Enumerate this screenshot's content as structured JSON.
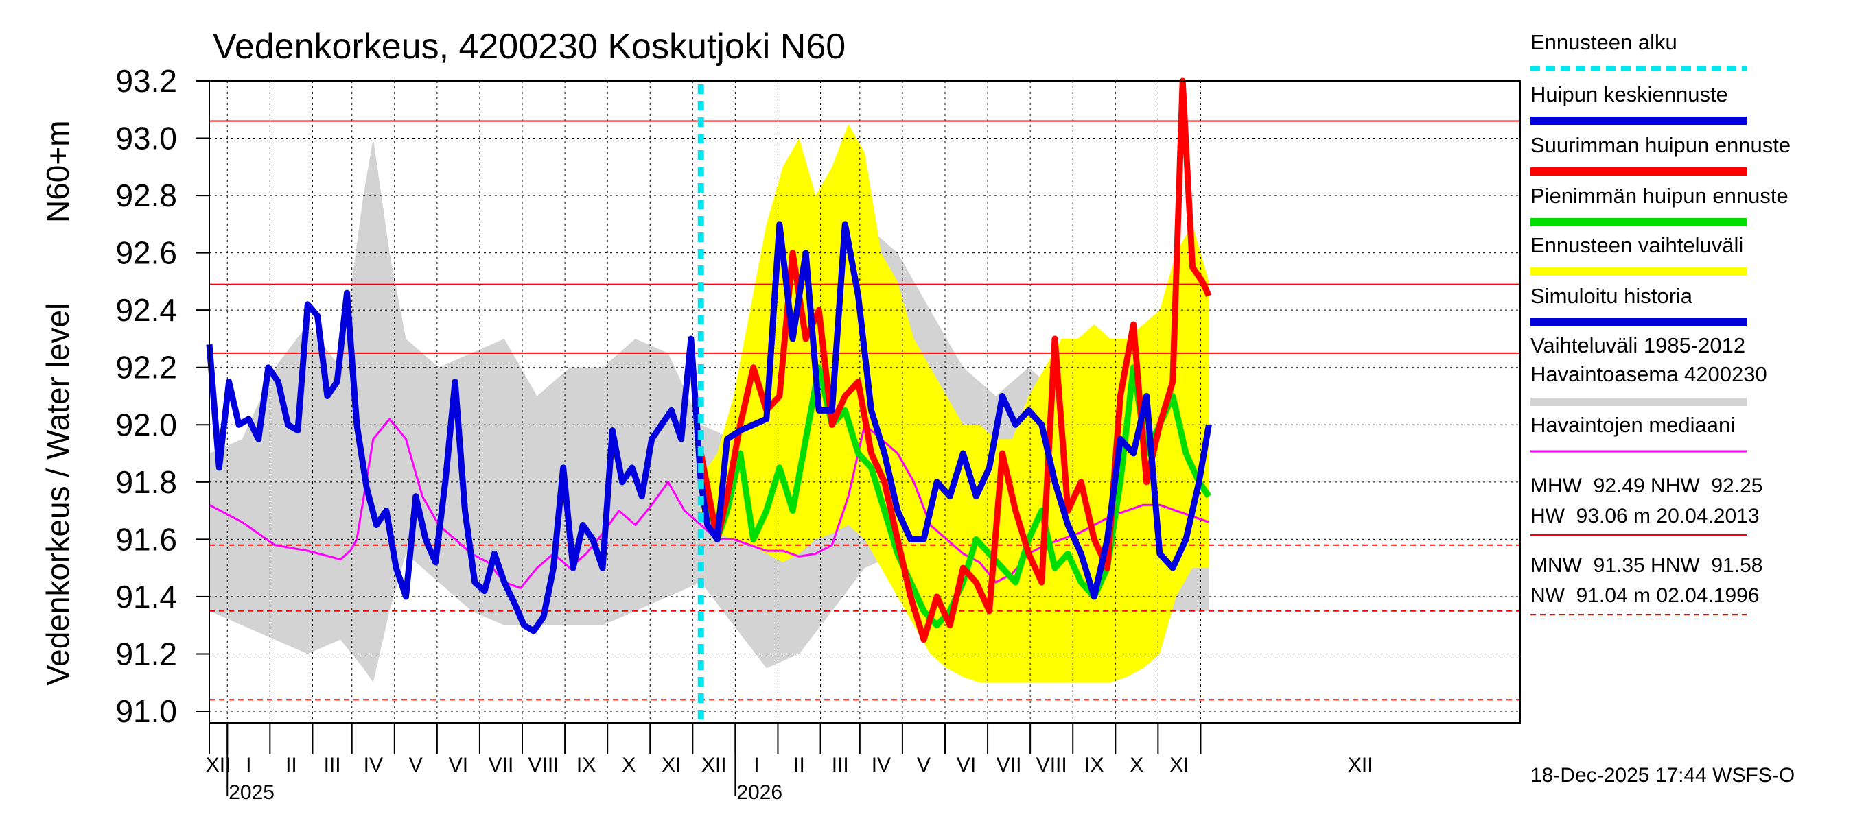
{
  "chart_data": {
    "type": "line",
    "title": "Vedenkorkeus, 4200230 Koskutjoki N60",
    "ylabel_left": "Vedenkorkeus / Water level",
    "ylabel_unit": "N60+m",
    "ylim": [
      91.0,
      93.2
    ],
    "yticks": [
      {
        "value": 91.0,
        "label": "91.0"
      },
      {
        "value": 91.2,
        "label": "91.2"
      },
      {
        "value": 91.4,
        "label": "91.4"
      },
      {
        "value": 91.6,
        "label": "91.6"
      },
      {
        "value": 91.8,
        "label": "91.8"
      },
      {
        "value": 92.0,
        "label": "92.0"
      },
      {
        "value": 92.2,
        "label": "92.2"
      },
      {
        "value": 92.4,
        "label": "92.4"
      },
      {
        "value": 92.6,
        "label": "92.6"
      },
      {
        "value": 92.8,
        "label": "92.8"
      },
      {
        "value": 93.0,
        "label": "93.0"
      },
      {
        "value": 93.2,
        "label": "93.2"
      }
    ],
    "xlim_days": [
      0,
      400
    ],
    "months": [
      "XII",
      "I",
      "II",
      "III",
      "IV",
      "V",
      "VI",
      "VII",
      "VIII",
      "IX",
      "X",
      "XI",
      "XII",
      "I",
      "II",
      "III",
      "IV",
      "V",
      "VI",
      "VII",
      "VIII",
      "IX",
      "X",
      "XI",
      "XII"
    ],
    "month_boundaries": [
      0,
      5.5,
      18.5,
      31.5,
      43.5,
      56.5,
      69.5,
      82.5,
      95.5,
      108.5,
      121.5,
      134.5,
      147.5,
      160.5,
      173.5,
      186.5,
      198.5,
      211.5,
      224.5,
      237.5,
      250.5,
      263.5,
      276.5,
      289.5,
      302.5
    ],
    "years": [
      {
        "label": "2025",
        "day": 5.5
      },
      {
        "label": "2026",
        "day": 160.5
      }
    ],
    "forecast_start_day": 150,
    "reference_lines": [
      {
        "name": "HW",
        "value": 93.06,
        "style": "solid"
      },
      {
        "name": "MHW",
        "value": 92.49,
        "style": "solid"
      },
      {
        "name": "NHW",
        "value": 92.25,
        "style": "solid"
      },
      {
        "name": "HNW",
        "value": 91.58,
        "style": "dashed"
      },
      {
        "name": "MNW",
        "value": 91.35,
        "style": "dashed"
      },
      {
        "name": "NW",
        "value": 91.04,
        "style": "dashed"
      }
    ],
    "series": [
      {
        "name": "Vaihteluväli 1985-2012",
        "type": "band",
        "color": "#d3d3d3",
        "x": [
          0,
          10,
          20,
          30,
          40,
          47,
          50,
          55,
          60,
          70,
          80,
          90,
          100,
          110,
          120,
          130,
          140,
          150,
          160,
          170,
          180,
          190,
          200,
          210,
          220,
          230,
          240,
          250,
          260,
          270,
          280,
          290,
          300,
          305
        ],
        "low": [
          91.35,
          91.3,
          91.25,
          91.2,
          91.25,
          91.15,
          91.1,
          91.35,
          91.55,
          91.45,
          91.35,
          91.3,
          91.3,
          91.3,
          91.3,
          91.35,
          91.4,
          91.45,
          91.3,
          91.15,
          91.2,
          91.35,
          91.5,
          91.55,
          91.45,
          91.35,
          91.3,
          91.3,
          91.3,
          91.32,
          91.3,
          91.35,
          91.35,
          91.35
        ],
        "high": [
          91.9,
          91.95,
          92.2,
          92.35,
          92.2,
          92.8,
          93.0,
          92.6,
          92.3,
          92.2,
          92.25,
          92.3,
          92.1,
          92.2,
          92.2,
          92.3,
          92.25,
          92.0,
          91.95,
          92.1,
          92.5,
          92.6,
          92.7,
          92.6,
          92.4,
          92.2,
          92.1,
          92.2,
          92.1,
          92.2,
          92.3,
          92.2,
          92.3,
          92.3
        ]
      },
      {
        "name": "Ennusteen vaihteluväli",
        "type": "band",
        "color": "#ffff00",
        "x": [
          150,
          152,
          155,
          160,
          165,
          170,
          175,
          180,
          185,
          190,
          195,
          200,
          205,
          210,
          215,
          220,
          225,
          230,
          235,
          240,
          245,
          250,
          255,
          260,
          265,
          270,
          275,
          280,
          285,
          290,
          295,
          300,
          305
        ],
        "low": [
          91.7,
          91.65,
          91.62,
          91.6,
          91.58,
          91.55,
          91.52,
          91.55,
          91.6,
          91.62,
          91.65,
          91.6,
          91.5,
          91.4,
          91.3,
          91.2,
          91.15,
          91.12,
          91.1,
          91.1,
          91.1,
          91.1,
          91.1,
          91.1,
          91.1,
          91.1,
          91.1,
          91.12,
          91.15,
          91.2,
          91.4,
          91.5,
          91.5
        ],
        "high": [
          91.8,
          91.85,
          91.9,
          92.1,
          92.4,
          92.7,
          92.9,
          93.0,
          92.8,
          92.9,
          93.05,
          92.95,
          92.6,
          92.5,
          92.3,
          92.2,
          92.1,
          92.0,
          92.0,
          91.95,
          91.95,
          92.1,
          92.2,
          92.3,
          92.3,
          92.35,
          92.3,
          92.3,
          92.35,
          92.4,
          92.6,
          92.7,
          92.5
        ]
      },
      {
        "name": "Havaintojen mediaani",
        "type": "line",
        "color": "#ff00ff",
        "x": [
          0,
          10,
          20,
          30,
          40,
          43,
          45,
          50,
          55,
          60,
          65,
          70,
          75,
          80,
          85,
          90,
          95,
          100,
          105,
          110,
          115,
          120,
          125,
          130,
          135,
          140,
          145,
          150,
          155,
          160,
          165,
          170,
          175,
          180,
          185,
          190,
          195,
          200,
          205,
          210,
          215,
          220,
          225,
          230,
          235,
          240,
          245,
          250,
          255,
          260,
          265,
          270,
          275,
          280,
          285,
          290,
          295,
          300,
          305
        ],
        "y": [
          91.72,
          91.66,
          91.58,
          91.56,
          91.53,
          91.56,
          91.6,
          91.95,
          92.02,
          91.95,
          91.75,
          91.65,
          91.6,
          91.55,
          91.52,
          91.45,
          91.43,
          91.5,
          91.55,
          91.5,
          91.55,
          91.62,
          91.7,
          91.65,
          91.72,
          91.8,
          91.7,
          91.65,
          91.6,
          91.6,
          91.58,
          91.56,
          91.56,
          91.54,
          91.55,
          91.58,
          91.75,
          92.0,
          91.95,
          91.9,
          91.8,
          91.65,
          91.6,
          91.55,
          91.52,
          91.45,
          91.48,
          91.55,
          91.58,
          91.6,
          91.62,
          91.65,
          91.68,
          91.7,
          91.72,
          91.72,
          91.7,
          91.68,
          91.66
        ]
      },
      {
        "name": "Pienimmän huipun ennuste",
        "type": "line",
        "color": "#00dd00",
        "x": [
          150,
          155,
          158,
          162,
          166,
          170,
          174,
          178,
          182,
          186,
          190,
          194,
          198,
          202,
          206,
          210,
          214,
          218,
          222,
          226,
          230,
          234,
          238,
          242,
          246,
          250,
          254,
          258,
          262,
          266,
          270,
          274,
          278,
          282,
          286,
          290,
          294,
          298,
          302,
          305
        ],
        "y": [
          91.85,
          91.6,
          91.7,
          91.9,
          91.6,
          91.7,
          91.85,
          91.7,
          91.95,
          92.2,
          92.0,
          92.05,
          91.9,
          91.85,
          91.7,
          91.55,
          91.45,
          91.35,
          91.3,
          91.35,
          91.45,
          91.6,
          91.55,
          91.5,
          91.45,
          91.6,
          91.7,
          91.5,
          91.55,
          91.45,
          91.4,
          91.5,
          91.8,
          92.2,
          91.9,
          92.0,
          92.1,
          91.9,
          91.8,
          91.75
        ]
      },
      {
        "name": "Suurimman huipun ennuste",
        "type": "line",
        "color": "#ff0000",
        "x": [
          150,
          155,
          158,
          162,
          166,
          170,
          174,
          178,
          182,
          186,
          190,
          194,
          198,
          202,
          206,
          210,
          214,
          218,
          222,
          226,
          230,
          234,
          238,
          242,
          246,
          250,
          254,
          258,
          262,
          266,
          270,
          274,
          278,
          282,
          286,
          290,
          294,
          297,
          300,
          303,
          305
        ],
        "y": [
          91.9,
          91.6,
          91.75,
          92.0,
          92.2,
          92.05,
          92.1,
          92.6,
          92.3,
          92.4,
          92.0,
          92.1,
          92.15,
          91.9,
          91.8,
          91.6,
          91.4,
          91.25,
          91.4,
          91.3,
          91.5,
          91.45,
          91.35,
          91.9,
          91.7,
          91.55,
          91.45,
          92.3,
          91.7,
          91.8,
          91.6,
          91.5,
          92.1,
          92.35,
          91.8,
          92.0,
          92.15,
          93.2,
          92.55,
          92.5,
          92.45
        ]
      },
      {
        "name": "Simuloitu historia",
        "type": "line",
        "color": "#0000dd",
        "x": [
          0,
          3,
          6,
          9,
          12,
          15,
          18,
          21,
          24,
          27,
          30,
          33,
          36,
          39,
          42,
          45,
          48,
          51,
          54,
          57,
          60,
          63,
          66,
          69,
          72,
          75,
          78,
          81,
          84,
          87,
          90,
          93,
          96,
          99,
          102,
          105,
          108,
          111,
          114,
          117,
          120,
          123,
          126,
          129,
          132,
          135,
          138,
          141,
          144,
          147,
          150,
          152,
          155,
          158,
          162,
          166,
          170,
          174,
          178,
          182,
          186,
          190,
          194,
          198,
          202,
          206,
          210,
          214,
          218,
          222,
          226,
          230,
          234,
          238,
          242,
          246,
          250,
          254,
          258,
          262,
          266,
          270,
          274,
          278,
          282,
          286,
          290,
          294,
          298,
          302,
          305
        ],
        "y": [
          92.28,
          91.85,
          92.15,
          92.0,
          92.02,
          91.95,
          92.2,
          92.15,
          92.0,
          91.98,
          92.42,
          92.38,
          92.1,
          92.15,
          92.46,
          92.0,
          91.78,
          91.65,
          91.7,
          91.5,
          91.4,
          91.75,
          91.6,
          91.52,
          91.8,
          92.15,
          91.7,
          91.45,
          91.42,
          91.55,
          91.45,
          91.38,
          91.3,
          91.28,
          91.33,
          91.5,
          91.85,
          91.5,
          91.65,
          91.6,
          91.5,
          91.98,
          91.8,
          91.85,
          91.75,
          91.95,
          92.0,
          92.05,
          91.95,
          92.3,
          91.8,
          91.65,
          91.6,
          91.95,
          91.98,
          92.0,
          92.02,
          92.7,
          92.3,
          92.6,
          92.05,
          92.05,
          92.7,
          92.45,
          92.05,
          91.9,
          91.7,
          91.6,
          91.6,
          91.8,
          91.75,
          91.9,
          91.75,
          91.85,
          92.1,
          92.0,
          92.05,
          92.0,
          91.8,
          91.65,
          91.55,
          91.4,
          91.6,
          91.95,
          91.9,
          92.1,
          91.55,
          91.5,
          91.6,
          91.8,
          92.0
        ]
      }
    ],
    "legend": [
      {
        "label": "Ennusteen alku",
        "color": "#00e5ee",
        "style": "dotted"
      },
      {
        "label": "Huipun keskiennuste",
        "color": "#0000dd",
        "style": "solid"
      },
      {
        "label": "Suurimman huipun ennuste",
        "color": "#ff0000",
        "style": "solid"
      },
      {
        "label": "Pienimmän huipun ennuste",
        "color": "#00dd00",
        "style": "solid"
      },
      {
        "label": "Ennusteen vaihteluväli",
        "color": "#ffff00",
        "style": "solid"
      },
      {
        "label": "Simuloitu historia",
        "color": "#0000dd",
        "style": "solid"
      },
      {
        "label": "Vaihteluväli 1985-2012",
        "label2": "Havaintoasema 4200230",
        "color": "#d3d3d3",
        "style": "solid"
      },
      {
        "label": "Havaintojen mediaani",
        "color": "#ff00ff",
        "style": "thin"
      }
    ],
    "stats_line1": "MHW  92.49 NHW  92.25",
    "stats_line2": "HW  93.06 m 20.04.2013",
    "stats_line3": "MNW  91.35 HNW  91.58",
    "stats_line4": "NW  91.04 m 02.04.1996",
    "footer": "18-Dec-2025 17:44 WSFS-O"
  }
}
